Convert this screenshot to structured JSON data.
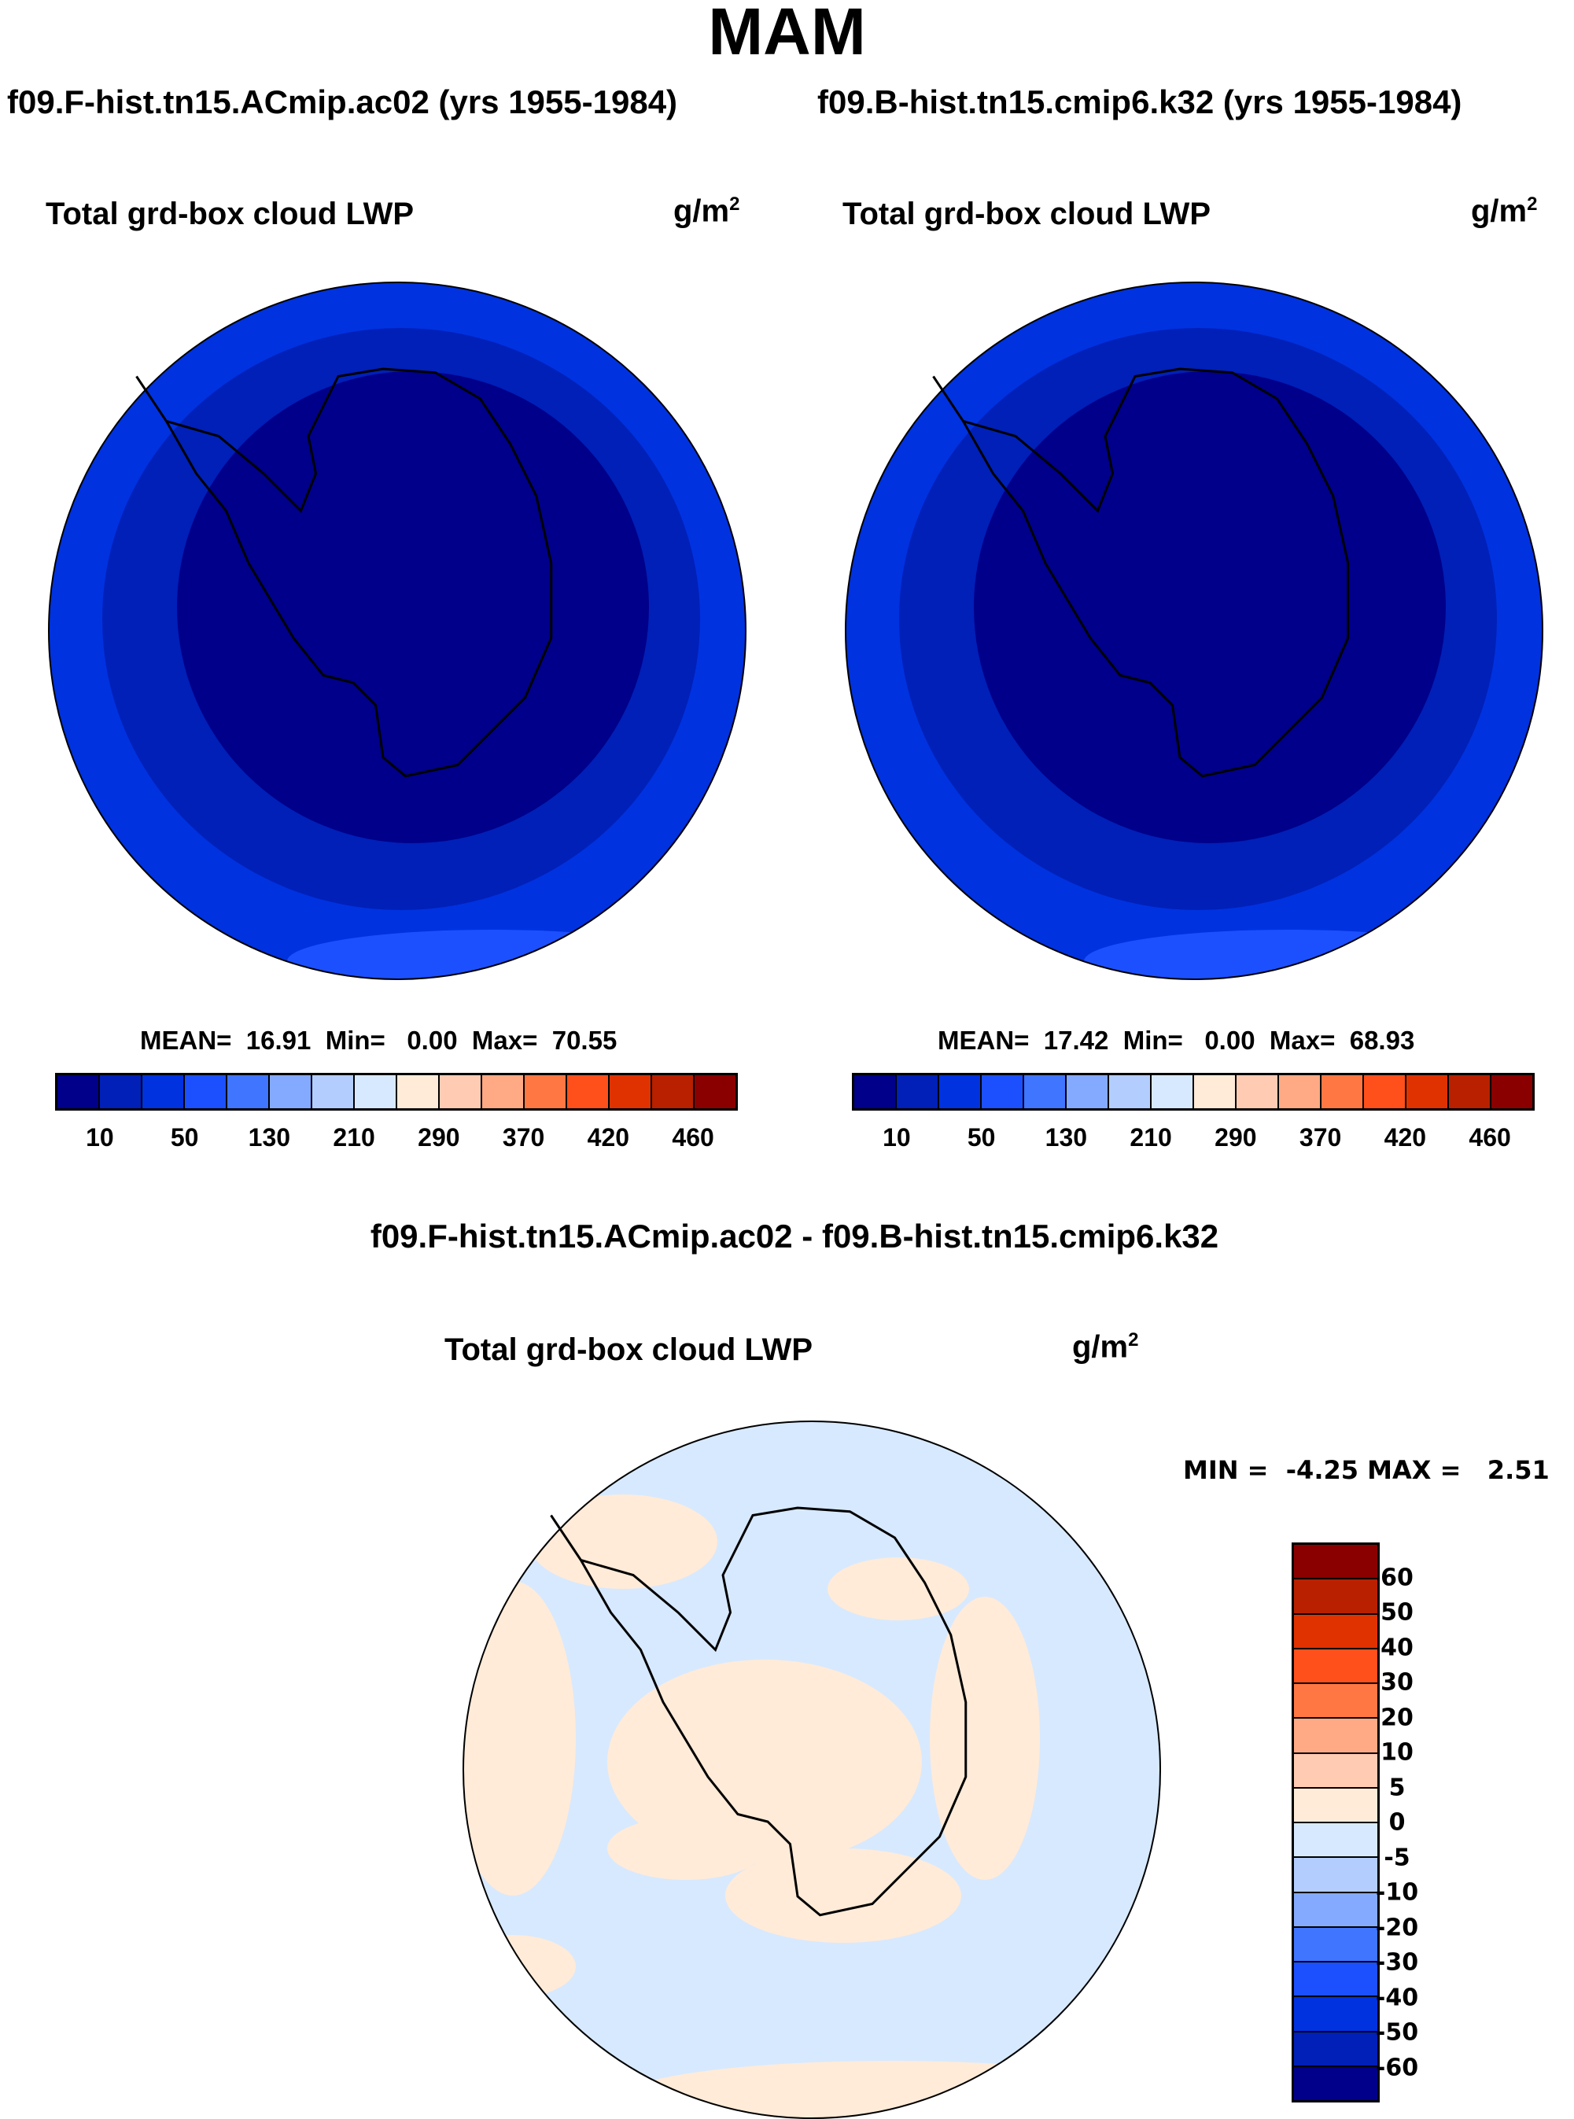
{
  "title": "MAM",
  "chart_data": [
    {
      "type": "heatmap",
      "projection": "south-polar-stereographic",
      "case_title": "f09.F-hist.tn15.ACmip.ac02 (yrs 1955-1984)",
      "title": "Total grd-box cloud LWP",
      "units": "g/m",
      "units_exp": "2",
      "stats": {
        "mean_label": "MEAN=",
        "mean": "16.91",
        "min_label": "Min=",
        "min": "0.00",
        "max_label": "Max=",
        "max": "70.55"
      },
      "colorbar_labels": [
        "10",
        "50",
        "130",
        "210",
        "290",
        "370",
        "420",
        "460"
      ]
    },
    {
      "type": "heatmap",
      "projection": "south-polar-stereographic",
      "case_title": "f09.B-hist.tn15.cmip6.k32 (yrs 1955-1984)",
      "title": "Total grd-box cloud LWP",
      "units": "g/m",
      "units_exp": "2",
      "stats": {
        "mean_label": "MEAN=",
        "mean": "17.42",
        "min_label": "Min=",
        "min": "0.00",
        "max_label": "Max=",
        "max": "68.93"
      },
      "colorbar_labels": [
        "10",
        "50",
        "130",
        "210",
        "290",
        "370",
        "420",
        "460"
      ]
    },
    {
      "type": "heatmap",
      "projection": "south-polar-stereographic",
      "case_title": "f09.F-hist.tn15.ACmip.ac02 - f09.B-hist.tn15.cmip6.k32",
      "title": "Total grd-box cloud LWP",
      "units": "g/m",
      "units_exp": "2",
      "stats": {
        "min_label": "MIN =",
        "min": "-4.25",
        "max_label": "MAX =",
        "max": "2.51"
      },
      "colorbar_labels": [
        "60",
        "50",
        "40",
        "30",
        "20",
        "10",
        "5",
        "0",
        "-5",
        "-10",
        "-20",
        "-30",
        "-40",
        "-50",
        "-60"
      ]
    }
  ],
  "palette": [
    "#00008a",
    "#0020b8",
    "#0032e0",
    "#1c50ff",
    "#4075ff",
    "#84aaff",
    "#b3cdff",
    "#d7e9ff",
    "#ffebd8",
    "#ffcbb3",
    "#ffaa84",
    "#ff7843",
    "#ff501b",
    "#e03200",
    "#b82000",
    "#8a0000"
  ]
}
